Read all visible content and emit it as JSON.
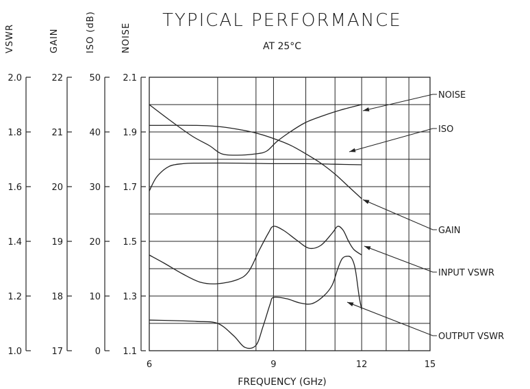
{
  "chart_data": {
    "type": "line",
    "title": "TYPICAL PERFORMANCE",
    "subtitle": "AT 25°C",
    "xlabel": "FREQUENCY (GHz)",
    "x_scale": "log",
    "xlim": [
      6,
      15
    ],
    "x_ticks": [
      "6",
      "9",
      "12",
      "15"
    ],
    "grid": true,
    "y_axes": [
      {
        "label": "VSWR",
        "ticks": [
          "1.0",
          "1.2",
          "1.4",
          "1.6",
          "1.8",
          "2.0"
        ],
        "ylim": [
          1.0,
          2.0
        ]
      },
      {
        "label": "GAIN",
        "ticks": [
          "17",
          "18",
          "19",
          "20",
          "21",
          "22"
        ],
        "ylim": [
          17,
          22
        ]
      },
      {
        "label": "ISO (dB)",
        "ticks": [
          "0",
          "10",
          "20",
          "30",
          "40",
          "50"
        ],
        "ylim": [
          0,
          50
        ]
      },
      {
        "label": "NOISE",
        "ticks": [
          "1.1",
          "1.3",
          "1.5",
          "1.7",
          "1.9",
          "2.1"
        ],
        "ylim": [
          1.1,
          2.1
        ]
      }
    ],
    "series": [
      {
        "name": "NOISE",
        "axis": "NOISE",
        "x": [
          6.0,
          6.4,
          6.9,
          7.3,
          7.6,
          8.0,
          8.5,
          8.8,
          9.1,
          9.5,
          10.0,
          10.6,
          11.2,
          12.0
        ],
        "y": [
          2.0,
          1.945,
          1.885,
          1.85,
          1.82,
          1.815,
          1.82,
          1.83,
          1.865,
          1.9,
          1.935,
          1.96,
          1.98,
          2.0
        ]
      },
      {
        "name": "ISO",
        "axis": "ISO (dB)",
        "x": [
          6.0,
          7.0,
          7.5,
          8.0,
          8.5,
          9.0,
          9.5,
          10.0,
          10.5,
          11.0,
          11.5,
          12.0
        ],
        "y": [
          41.2,
          41.2,
          41.0,
          40.5,
          39.8,
          38.8,
          37.6,
          36.0,
          34.3,
          32.3,
          30.0,
          27.8
        ]
      },
      {
        "name": "GAIN",
        "axis": "GAIN",
        "x": [
          6.0,
          6.15,
          6.4,
          6.7,
          7.0,
          8.0,
          9.0,
          10.0,
          11.0,
          12.0
        ],
        "y": [
          19.92,
          20.18,
          20.37,
          20.42,
          20.43,
          20.43,
          20.42,
          20.42,
          20.41,
          20.4
        ]
      },
      {
        "name": "INPUT VSWR",
        "axis": "VSWR",
        "x": [
          6.0,
          6.3,
          6.7,
          7.1,
          7.5,
          8.0,
          8.3,
          8.6,
          8.85,
          9.0,
          9.3,
          9.7,
          10.1,
          10.5,
          10.9,
          11.1,
          11.3,
          11.5,
          11.7,
          12.0
        ],
        "y": [
          1.35,
          1.32,
          1.28,
          1.25,
          1.245,
          1.26,
          1.29,
          1.37,
          1.43,
          1.455,
          1.44,
          1.405,
          1.375,
          1.385,
          1.43,
          1.455,
          1.44,
          1.4,
          1.37,
          1.35
        ]
      },
      {
        "name": "OUTPUT VSWR",
        "axis": "VSWR",
        "x": [
          6.0,
          6.5,
          7.0,
          7.5,
          7.9,
          8.2,
          8.5,
          8.7,
          8.9,
          9.0,
          9.4,
          9.8,
          10.2,
          10.6,
          10.9,
          11.1,
          11.25,
          11.4,
          11.6,
          11.75,
          11.9,
          12.0
        ],
        "y": [
          1.112,
          1.11,
          1.107,
          1.1,
          1.055,
          1.012,
          1.02,
          1.09,
          1.17,
          1.195,
          1.19,
          1.175,
          1.172,
          1.2,
          1.24,
          1.3,
          1.335,
          1.345,
          1.34,
          1.3,
          1.2,
          1.15
        ]
      }
    ],
    "annotations": [
      "NOISE",
      "ISO",
      "GAIN",
      "INPUT VSWR",
      "OUTPUT VSWR"
    ]
  }
}
